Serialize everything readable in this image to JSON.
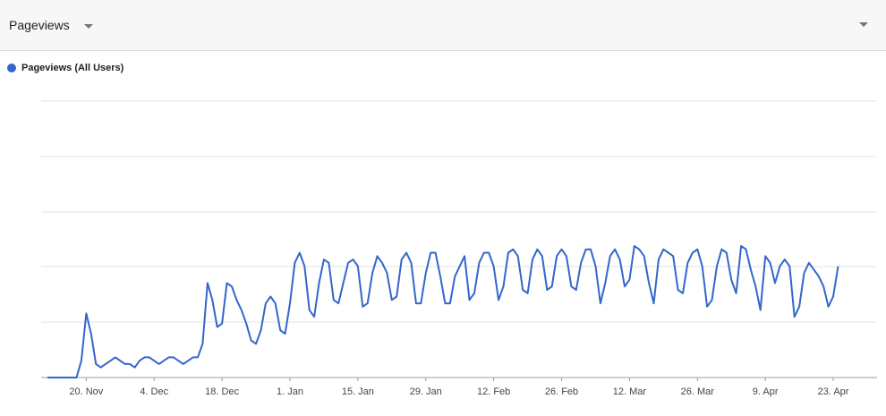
{
  "header": {
    "metric_label": "Pageviews",
    "dropdown_icon": "chevron-down-icon"
  },
  "legend": {
    "label": "Pageviews (All Users)",
    "color": "#3366cc"
  },
  "chart_data": {
    "type": "line",
    "x_start": "2017-11-12",
    "x_end": "2018-04-29",
    "grid": true,
    "ylim": [
      0,
      100
    ],
    "xticks": [
      "20. Nov",
      "4. Dec",
      "18. Dec",
      "1. Jan",
      "15. Jan",
      "29. Jan",
      "12. Feb",
      "26. Feb",
      "12. Mar",
      "26. Mar",
      "9. Apr",
      "23. Apr"
    ],
    "series": [
      {
        "name": "Pageviews (All Users)",
        "color": "#3366cc",
        "values": [
          0,
          0,
          0,
          0,
          0,
          0,
          0,
          5,
          19,
          13,
          4,
          3,
          4,
          5,
          6,
          5,
          4,
          4,
          3,
          5,
          6,
          6,
          5,
          4,
          5,
          6,
          6,
          5,
          4,
          5,
          6,
          6,
          10,
          28,
          23,
          15,
          16,
          28,
          27,
          23,
          20,
          16,
          11,
          10,
          14,
          22,
          24,
          22,
          14,
          13,
          22,
          34,
          37,
          33,
          20,
          18,
          28,
          35,
          34,
          23,
          22,
          28,
          34,
          35,
          33,
          21,
          22,
          31,
          36,
          34,
          31,
          23,
          24,
          35,
          37,
          34,
          22,
          22,
          31,
          37,
          37,
          30,
          22,
          22,
          30,
          33,
          36,
          23,
          25,
          34,
          37,
          37,
          33,
          23,
          27,
          37,
          38,
          36,
          26,
          25,
          35,
          38,
          36,
          26,
          27,
          36,
          38,
          36,
          27,
          26,
          34,
          38,
          38,
          33,
          22,
          28,
          36,
          38,
          35,
          27,
          29,
          39,
          38,
          36,
          28,
          22,
          35,
          38,
          37,
          36,
          26,
          25,
          34,
          37,
          38,
          33,
          21,
          23,
          33,
          38,
          37,
          29,
          25,
          39,
          38,
          32,
          27,
          20,
          36,
          34,
          28,
          33,
          35,
          33,
          18,
          21,
          31,
          34,
          32,
          30,
          27,
          21,
          24,
          33
        ]
      }
    ]
  }
}
